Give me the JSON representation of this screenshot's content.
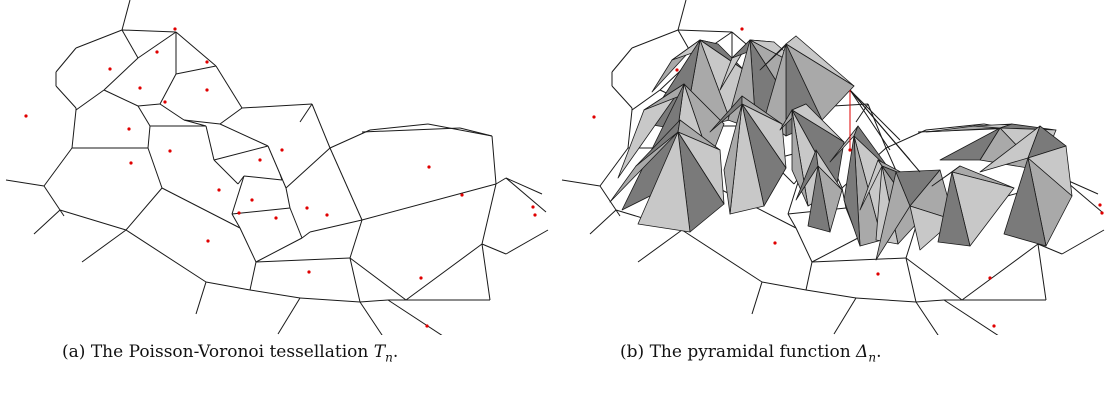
{
  "figure": {
    "panel_a": {
      "caption_label": "(a)",
      "caption_text": "The Poisson-Voronoi tessellation",
      "caption_symbol": "T",
      "caption_subscript": "n",
      "caption_end": "."
    },
    "panel_b": {
      "caption_label": "(b)",
      "caption_text": "The pyramidal function",
      "caption_symbol": "Δ",
      "caption_subscript": "n",
      "caption_end": "."
    }
  },
  "colors": {
    "edges": "#1a1a1a",
    "sites": "#e00000",
    "pyramid_light": "#c8c8c8",
    "pyramid_mid": "#a9a9a9",
    "pyramid_dark": "#7a7a7a"
  }
}
